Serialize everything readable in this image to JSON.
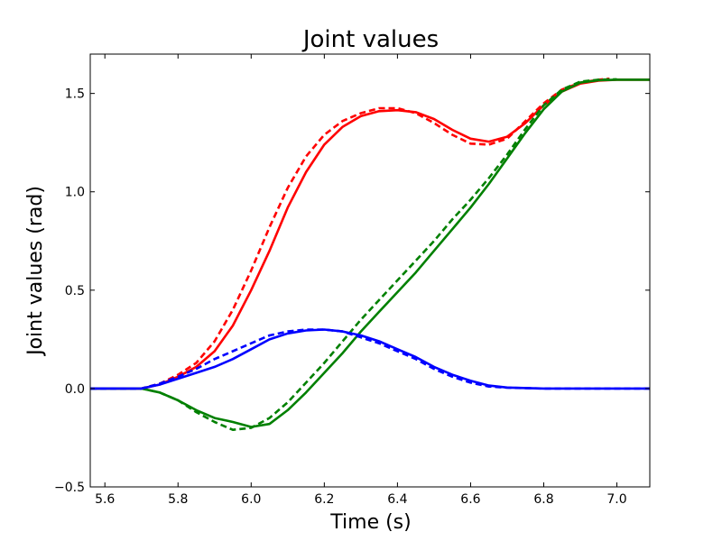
{
  "chart_data": {
    "type": "line",
    "title": "Joint values",
    "xlabel": "Time (s)",
    "ylabel": "Joint values (rad)",
    "xlim": [
      5.56,
      7.09
    ],
    "ylim": [
      -0.5,
      1.7
    ],
    "x_ticks": [
      5.6,
      5.8,
      6.0,
      6.2,
      6.4,
      6.6,
      6.8,
      7.0
    ],
    "x_tick_labels": [
      "5.6",
      "5.8",
      "6.0",
      "6.2",
      "6.4",
      "6.6",
      "6.8",
      "7.0"
    ],
    "y_ticks": [
      -0.5,
      0.0,
      0.5,
      1.0,
      1.5
    ],
    "y_tick_labels": [
      "−0.5",
      "0.0",
      "0.5",
      "1.0",
      "1.5"
    ],
    "grid": false,
    "legend": false,
    "series": [
      {
        "color": "#ff0000",
        "style": "solid",
        "points": [
          [
            5.56,
            0
          ],
          [
            5.7,
            0
          ],
          [
            5.75,
            0.02
          ],
          [
            5.8,
            0.06
          ],
          [
            5.85,
            0.11
          ],
          [
            5.9,
            0.19
          ],
          [
            5.95,
            0.32
          ],
          [
            6.0,
            0.5
          ],
          [
            6.05,
            0.7
          ],
          [
            6.1,
            0.92
          ],
          [
            6.15,
            1.1
          ],
          [
            6.2,
            1.24
          ],
          [
            6.25,
            1.33
          ],
          [
            6.3,
            1.385
          ],
          [
            6.35,
            1.41
          ],
          [
            6.4,
            1.415
          ],
          [
            6.45,
            1.405
          ],
          [
            6.5,
            1.37
          ],
          [
            6.55,
            1.315
          ],
          [
            6.6,
            1.27
          ],
          [
            6.65,
            1.255
          ],
          [
            6.7,
            1.28
          ],
          [
            6.75,
            1.35
          ],
          [
            6.8,
            1.44
          ],
          [
            6.85,
            1.51
          ],
          [
            6.9,
            1.55
          ],
          [
            6.95,
            1.565
          ],
          [
            7.0,
            1.57
          ],
          [
            7.09,
            1.57
          ]
        ]
      },
      {
        "color": "#ff0000",
        "style": "dashed",
        "points": [
          [
            5.56,
            0
          ],
          [
            5.7,
            0
          ],
          [
            5.75,
            0.025
          ],
          [
            5.8,
            0.07
          ],
          [
            5.85,
            0.13
          ],
          [
            5.9,
            0.24
          ],
          [
            5.95,
            0.4
          ],
          [
            6.0,
            0.6
          ],
          [
            6.05,
            0.82
          ],
          [
            6.1,
            1.02
          ],
          [
            6.15,
            1.18
          ],
          [
            6.2,
            1.29
          ],
          [
            6.25,
            1.36
          ],
          [
            6.3,
            1.4
          ],
          [
            6.35,
            1.425
          ],
          [
            6.4,
            1.425
          ],
          [
            6.45,
            1.4
          ],
          [
            6.5,
            1.35
          ],
          [
            6.55,
            1.29
          ],
          [
            6.6,
            1.245
          ],
          [
            6.65,
            1.24
          ],
          [
            6.7,
            1.27
          ],
          [
            6.75,
            1.36
          ],
          [
            6.8,
            1.45
          ],
          [
            6.85,
            1.52
          ],
          [
            6.9,
            1.555
          ],
          [
            6.95,
            1.57
          ],
          [
            6.98,
            1.575
          ]
        ]
      },
      {
        "color": "#008000",
        "style": "solid",
        "points": [
          [
            5.56,
            0
          ],
          [
            5.7,
            0
          ],
          [
            5.75,
            -0.02
          ],
          [
            5.8,
            -0.06
          ],
          [
            5.85,
            -0.11
          ],
          [
            5.9,
            -0.15
          ],
          [
            5.95,
            -0.17
          ],
          [
            6.0,
            -0.195
          ],
          [
            6.05,
            -0.18
          ],
          [
            6.1,
            -0.11
          ],
          [
            6.15,
            -0.02
          ],
          [
            6.2,
            0.08
          ],
          [
            6.25,
            0.18
          ],
          [
            6.3,
            0.29
          ],
          [
            6.35,
            0.39
          ],
          [
            6.4,
            0.49
          ],
          [
            6.45,
            0.59
          ],
          [
            6.5,
            0.7
          ],
          [
            6.55,
            0.81
          ],
          [
            6.6,
            0.92
          ],
          [
            6.65,
            1.04
          ],
          [
            6.7,
            1.17
          ],
          [
            6.75,
            1.3
          ],
          [
            6.8,
            1.42
          ],
          [
            6.85,
            1.51
          ],
          [
            6.9,
            1.555
          ],
          [
            6.95,
            1.567
          ],
          [
            7.0,
            1.57
          ],
          [
            7.09,
            1.57
          ]
        ]
      },
      {
        "color": "#008000",
        "style": "dashed",
        "points": [
          [
            5.56,
            0
          ],
          [
            5.7,
            0
          ],
          [
            5.75,
            -0.02
          ],
          [
            5.8,
            -0.06
          ],
          [
            5.85,
            -0.12
          ],
          [
            5.9,
            -0.17
          ],
          [
            5.95,
            -0.21
          ],
          [
            6.0,
            -0.2
          ],
          [
            6.05,
            -0.15
          ],
          [
            6.1,
            -0.07
          ],
          [
            6.15,
            0.03
          ],
          [
            6.2,
            0.13
          ],
          [
            6.25,
            0.24
          ],
          [
            6.3,
            0.35
          ],
          [
            6.35,
            0.45
          ],
          [
            6.4,
            0.55
          ],
          [
            6.45,
            0.65
          ],
          [
            6.5,
            0.75
          ],
          [
            6.55,
            0.86
          ],
          [
            6.6,
            0.96
          ],
          [
            6.65,
            1.07
          ],
          [
            6.7,
            1.19
          ],
          [
            6.75,
            1.32
          ],
          [
            6.8,
            1.44
          ],
          [
            6.85,
            1.52
          ],
          [
            6.9,
            1.56
          ],
          [
            6.95,
            1.57
          ],
          [
            7.0,
            1.572
          ]
        ]
      },
      {
        "color": "#0000ff",
        "style": "solid",
        "points": [
          [
            5.56,
            0
          ],
          [
            5.7,
            0
          ],
          [
            5.75,
            0.02
          ],
          [
            5.8,
            0.05
          ],
          [
            5.85,
            0.08
          ],
          [
            5.9,
            0.11
          ],
          [
            5.95,
            0.15
          ],
          [
            6.0,
            0.2
          ],
          [
            6.05,
            0.25
          ],
          [
            6.1,
            0.28
          ],
          [
            6.15,
            0.295
          ],
          [
            6.2,
            0.3
          ],
          [
            6.25,
            0.29
          ],
          [
            6.3,
            0.27
          ],
          [
            6.35,
            0.24
          ],
          [
            6.4,
            0.2
          ],
          [
            6.45,
            0.16
          ],
          [
            6.5,
            0.11
          ],
          [
            6.55,
            0.07
          ],
          [
            6.6,
            0.04
          ],
          [
            6.65,
            0.015
          ],
          [
            6.7,
            0.005
          ],
          [
            6.8,
            0
          ],
          [
            7.09,
            0
          ]
        ]
      },
      {
        "color": "#0000ff",
        "style": "dashed",
        "points": [
          [
            5.56,
            0
          ],
          [
            5.7,
            0
          ],
          [
            5.75,
            0.025
          ],
          [
            5.8,
            0.06
          ],
          [
            5.85,
            0.1
          ],
          [
            5.9,
            0.15
          ],
          [
            5.95,
            0.19
          ],
          [
            6.0,
            0.23
          ],
          [
            6.05,
            0.27
          ],
          [
            6.1,
            0.29
          ],
          [
            6.15,
            0.3
          ],
          [
            6.2,
            0.3
          ],
          [
            6.25,
            0.29
          ],
          [
            6.3,
            0.26
          ],
          [
            6.35,
            0.23
          ],
          [
            6.4,
            0.19
          ],
          [
            6.45,
            0.15
          ],
          [
            6.5,
            0.1
          ],
          [
            6.55,
            0.06
          ],
          [
            6.6,
            0.03
          ],
          [
            6.65,
            0.01
          ],
          [
            6.7,
            0.004
          ],
          [
            6.8,
            0
          ],
          [
            7.09,
            0
          ]
        ]
      }
    ]
  }
}
